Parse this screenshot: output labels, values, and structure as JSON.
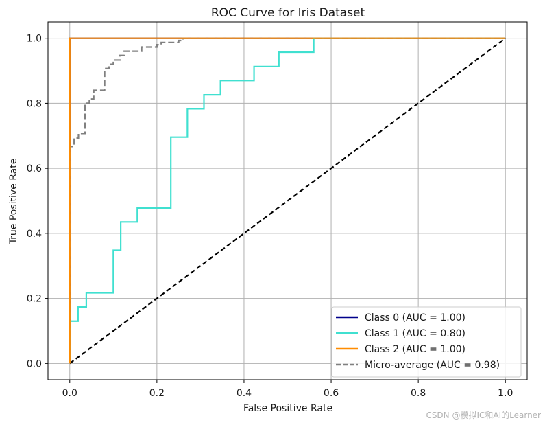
{
  "chart_data": {
    "type": "line",
    "title": "ROC Curve for Iris Dataset",
    "xlabel": "False Positive Rate",
    "ylabel": "True Positive Rate",
    "xlim": [
      -0.05,
      1.05
    ],
    "ylim": [
      -0.05,
      1.05
    ],
    "xticks": [
      "0.0",
      "0.2",
      "0.4",
      "0.6",
      "0.8",
      "1.0"
    ],
    "yticks": [
      "0.0",
      "0.2",
      "0.4",
      "0.6",
      "0.8",
      "1.0"
    ],
    "grid": true,
    "legend_position": "lower-right",
    "series": [
      {
        "name": "Class 0 (AUC = 1.00)",
        "color": "#00008b",
        "style": "solid",
        "x": [
          0.0,
          0.0,
          1.0
        ],
        "y": [
          0.0,
          1.0,
          1.0
        ]
      },
      {
        "name": "Class 1 (AUC = 0.80)",
        "color": "#40e0d0",
        "style": "solid",
        "x": [
          0.0,
          0.0,
          0.019,
          0.019,
          0.038,
          0.038,
          0.1,
          0.1,
          0.117,
          0.117,
          0.155,
          0.155,
          0.232,
          0.232,
          0.27,
          0.27,
          0.308,
          0.308,
          0.346,
          0.346,
          0.423,
          0.423,
          0.48,
          0.48,
          0.56,
          0.56,
          1.0
        ],
        "y": [
          0.0,
          0.13,
          0.13,
          0.174,
          0.174,
          0.217,
          0.217,
          0.348,
          0.348,
          0.435,
          0.435,
          0.478,
          0.478,
          0.696,
          0.696,
          0.783,
          0.783,
          0.826,
          0.826,
          0.87,
          0.87,
          0.913,
          0.913,
          0.957,
          0.957,
          1.0,
          1.0
        ]
      },
      {
        "name": "Class 2 (AUC = 1.00)",
        "color": "#ff8c00",
        "style": "solid",
        "x": [
          0.0,
          0.0,
          1.0
        ],
        "y": [
          0.0,
          1.0,
          1.0
        ]
      },
      {
        "name": "Micro-average (AUC = 0.98)",
        "color": "#808080",
        "style": "dashed",
        "x": [
          0.0,
          0.0,
          0.01,
          0.01,
          0.02,
          0.02,
          0.035,
          0.035,
          0.045,
          0.045,
          0.055,
          0.055,
          0.08,
          0.08,
          0.09,
          0.09,
          0.1,
          0.1,
          0.115,
          0.115,
          0.125,
          0.125,
          0.165,
          0.165,
          0.2,
          0.2,
          0.21,
          0.21,
          0.25,
          0.25,
          0.26,
          0.26,
          1.0
        ],
        "y": [
          0.0,
          0.667,
          0.667,
          0.693,
          0.693,
          0.707,
          0.707,
          0.8,
          0.8,
          0.813,
          0.813,
          0.84,
          0.84,
          0.907,
          0.907,
          0.92,
          0.92,
          0.933,
          0.933,
          0.947,
          0.947,
          0.96,
          0.96,
          0.973,
          0.973,
          0.98,
          0.98,
          0.987,
          0.987,
          0.993,
          0.993,
          1.0,
          1.0
        ]
      },
      {
        "name": "",
        "color": "#000000",
        "style": "dashed",
        "x": [
          0.0,
          1.0
        ],
        "y": [
          0.0,
          1.0
        ]
      }
    ]
  },
  "watermark": "CSDN @模拟IC和AI的Learner"
}
